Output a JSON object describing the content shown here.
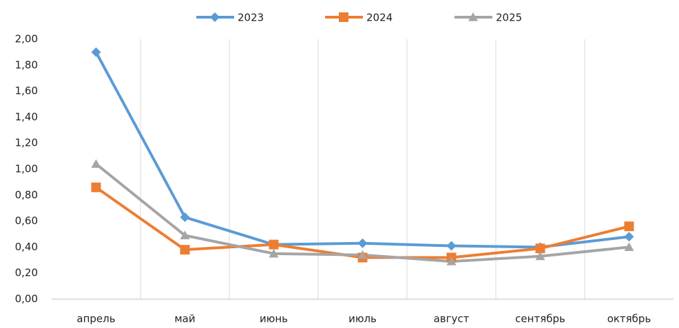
{
  "chart_data": {
    "type": "line",
    "categories": [
      "апрель",
      "май",
      "июнь",
      "июль",
      "август",
      "сентябрь",
      "октябрь"
    ],
    "series": [
      {
        "name": "2023",
        "color": "#5b9bd5",
        "marker": "diamond",
        "values": [
          1.9,
          0.63,
          0.42,
          0.43,
          0.41,
          0.4,
          0.48
        ]
      },
      {
        "name": "2024",
        "color": "#ed7d31",
        "marker": "square",
        "values": [
          0.86,
          0.38,
          0.42,
          0.32,
          0.32,
          0.39,
          0.56
        ]
      },
      {
        "name": "2025",
        "color": "#a5a5a5",
        "marker": "triangle",
        "values": [
          1.04,
          0.49,
          0.35,
          0.34,
          0.29,
          0.33,
          0.4
        ]
      }
    ],
    "ylim": [
      0,
      2
    ],
    "yticks": [
      {
        "value": 0,
        "label": "0,00"
      },
      {
        "value": 0.2,
        "label": "0,20"
      },
      {
        "value": 0.4,
        "label": "0,40"
      },
      {
        "value": 0.6,
        "label": "0,60"
      },
      {
        "value": 0.8,
        "label": "0,80"
      },
      {
        "value": 1,
        "label": "1,00"
      },
      {
        "value": 1.2,
        "label": "1,20"
      },
      {
        "value": 1.4,
        "label": "1,40"
      },
      {
        "value": 1.6,
        "label": "1,60"
      },
      {
        "value": 1.8,
        "label": "1,80"
      },
      {
        "value": 2,
        "label": "2,00"
      }
    ],
    "legend": "top"
  }
}
